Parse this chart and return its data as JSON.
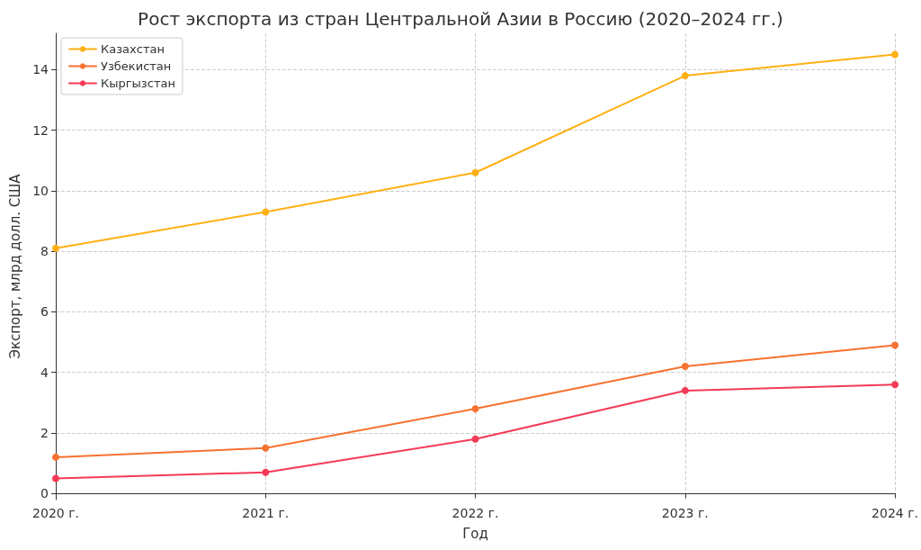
{
  "chart_data": {
    "type": "line",
    "title": "Рост экспорта из стран Центральной Азии в Россию (2020–2024 гг.)",
    "xlabel": "Год",
    "ylabel": "Экспорт, млрд долл. США",
    "categories": [
      "2020 г.",
      "2021 г.",
      "2022 г.",
      "2023 г.",
      "2024 г."
    ],
    "series": [
      {
        "name": "Казахстан",
        "color": "#ffb014",
        "values": [
          8.1,
          9.3,
          10.6,
          13.8,
          14.5
        ]
      },
      {
        "name": "Узбекистан",
        "color": "#f77230",
        "values": [
          1.2,
          1.5,
          2.8,
          4.2,
          4.9
        ]
      },
      {
        "name": "Кыргызстан",
        "color": "#f43a56",
        "values": [
          0.5,
          0.7,
          1.8,
          3.4,
          3.6
        ]
      }
    ],
    "ylim": [
      -0.2,
      15.2
    ],
    "yticks": [
      0,
      2,
      4,
      6,
      8,
      10,
      12,
      14
    ],
    "grid": true,
    "legend": "top left",
    "marker": "circle",
    "line_style": "solid"
  }
}
